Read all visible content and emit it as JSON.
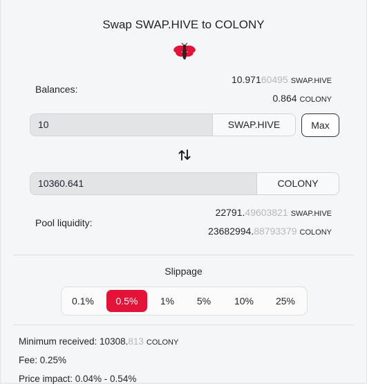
{
  "title": "Swap SWAP.HIVE to COLONY",
  "logo_icon": "hive-bee-logo",
  "balances": {
    "label": "Balances:",
    "swap_hive": {
      "int": "10.971",
      "dec": "60495",
      "unit": "SWAP.HIVE"
    },
    "colony": {
      "int": "0.864",
      "dec": "",
      "unit": "COLONY"
    }
  },
  "input": {
    "value": "10",
    "token": "SWAP.HIVE",
    "max_label": "Max"
  },
  "swap_icon": "swap-arrows-icon",
  "output": {
    "value": "10360.641",
    "token": "COLONY"
  },
  "pool": {
    "label": "Pool liquidity:",
    "swap_hive": {
      "int": "22791.",
      "dec": "49603821",
      "unit": "SWAP.HIVE"
    },
    "colony": {
      "int": "23682994.",
      "dec": "88793379",
      "unit": "COLONY"
    }
  },
  "slippage": {
    "title": "Slippage",
    "options": [
      "0.1%",
      "0.5%",
      "1%",
      "5%",
      "10%",
      "25%"
    ],
    "selected": "0.5%"
  },
  "info": {
    "min_received_label": "Minimum received:",
    "min_received_int": "10308.",
    "min_received_dec": "813",
    "min_received_unit": "COLONY",
    "fee": "Fee: 0.25%",
    "price_impact": "Price impact: 0.04% - 0.54%"
  },
  "colors": {
    "accent": "#e31337",
    "muted": "#b5b8bd"
  }
}
